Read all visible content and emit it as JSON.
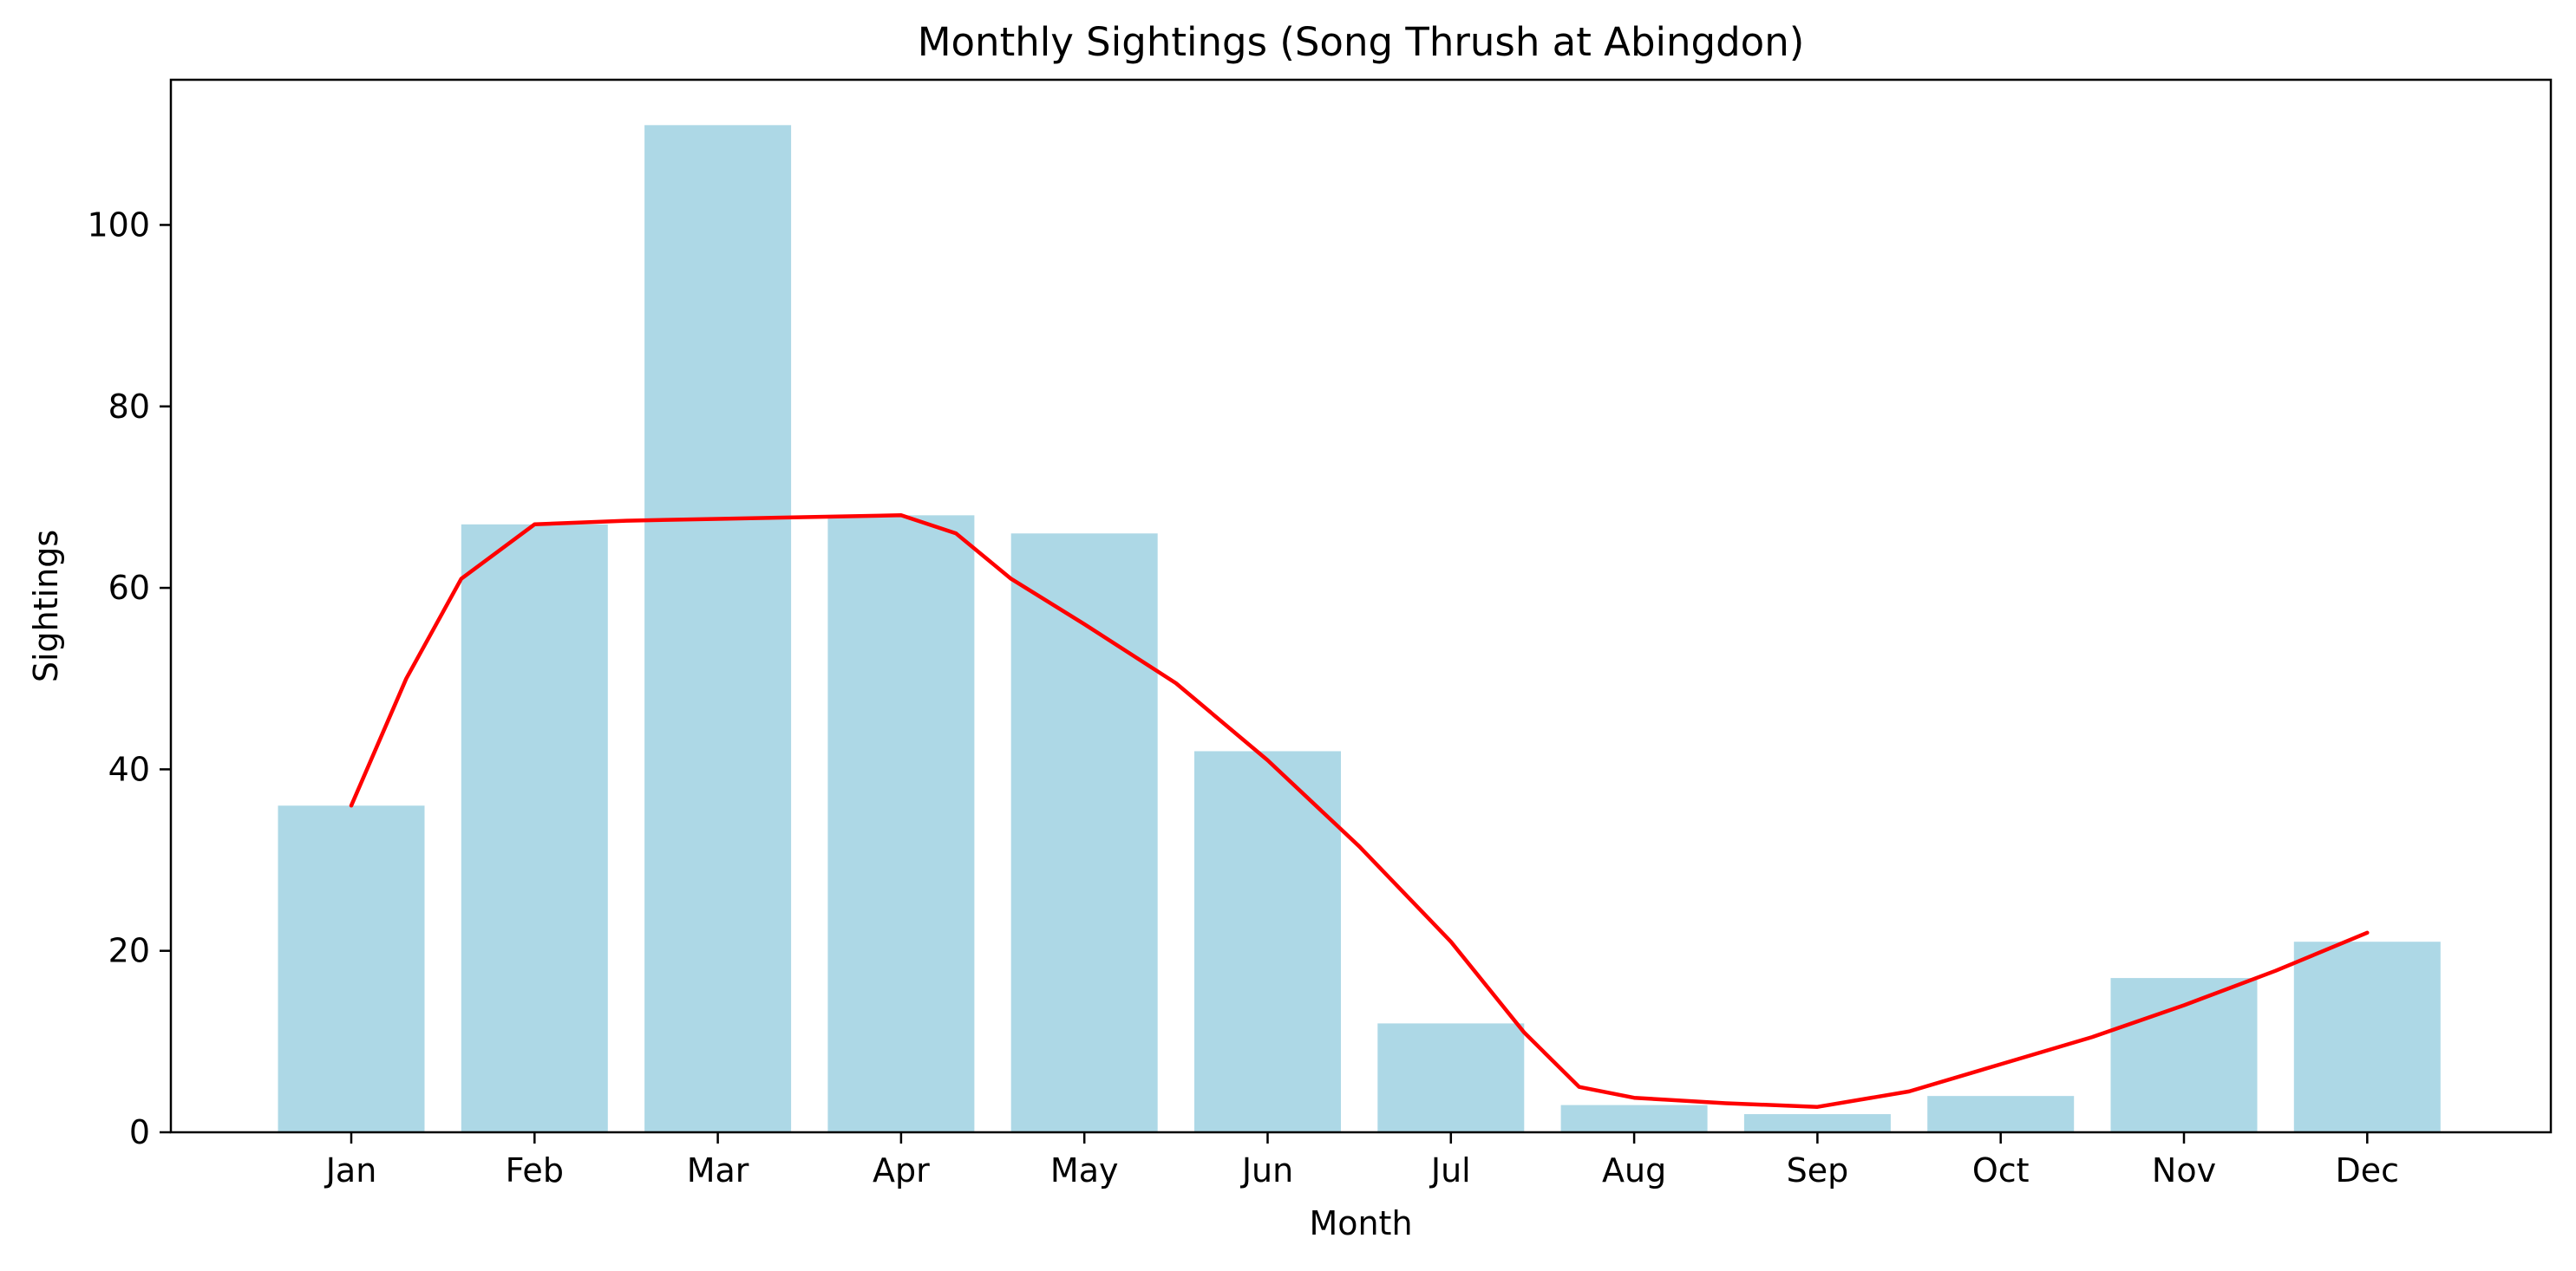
{
  "chart_data": {
    "type": "bar",
    "title": "Monthly Sightings (Song Thrush at Abingdon)",
    "xlabel": "Month",
    "ylabel": "Sightings",
    "categories": [
      "Jan",
      "Feb",
      "Mar",
      "Apr",
      "May",
      "Jun",
      "Jul",
      "Aug",
      "Sep",
      "Oct",
      "Nov",
      "Dec"
    ],
    "values": [
      36,
      67,
      111,
      68,
      66,
      42,
      12,
      3,
      2,
      4,
      17,
      21
    ],
    "ylim": [
      0,
      116
    ],
    "yticks": [
      0,
      20,
      40,
      60,
      80,
      100
    ],
    "bar_color": "#add8e6",
    "trend": {
      "type": "line",
      "color": "#ff0000",
      "points": [
        [
          0,
          36
        ],
        [
          0.3,
          50
        ],
        [
          0.6,
          61
        ],
        [
          1,
          67
        ],
        [
          1.5,
          67.4
        ],
        [
          2,
          67.6
        ],
        [
          2.5,
          67.8
        ],
        [
          3,
          68
        ],
        [
          3.3,
          66
        ],
        [
          3.6,
          61
        ],
        [
          4,
          56
        ],
        [
          4.5,
          49.5
        ],
        [
          5,
          41
        ],
        [
          5.5,
          31.5
        ],
        [
          6,
          21
        ],
        [
          6.4,
          11
        ],
        [
          6.7,
          5
        ],
        [
          7,
          3.8
        ],
        [
          7.5,
          3.2
        ],
        [
          8,
          2.8
        ],
        [
          8.5,
          4.5
        ],
        [
          9,
          7.5
        ],
        [
          9.5,
          10.5
        ],
        [
          10,
          14
        ],
        [
          10.5,
          17.8
        ],
        [
          11,
          22
        ]
      ]
    }
  }
}
